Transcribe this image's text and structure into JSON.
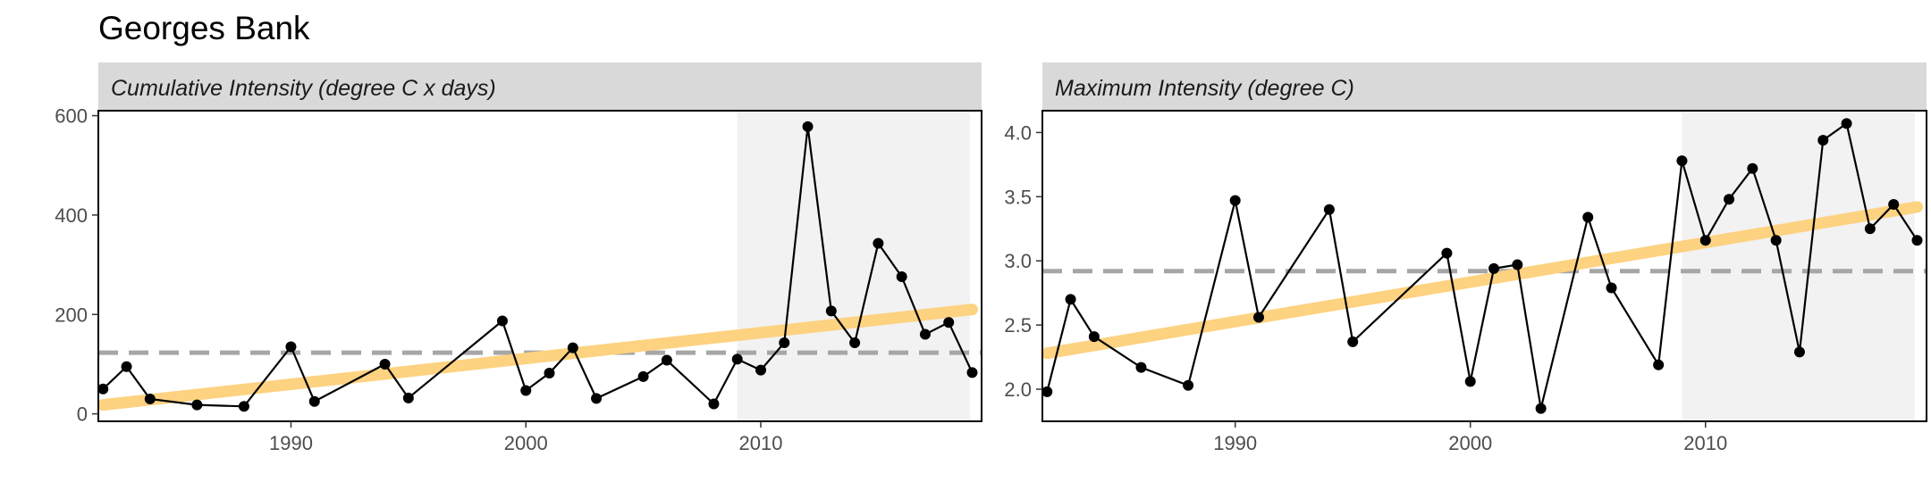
{
  "title": "Georges Bank",
  "chart_data": [
    {
      "type": "line",
      "panel_label": "Cumulative Intensity (degree C x days)",
      "xlim": [
        1981.8,
        2019.4
      ],
      "ylim": [
        -15,
        610
      ],
      "x_ticks": [
        1990,
        2000,
        2010
      ],
      "y_ticks": [
        0,
        200,
        400,
        600
      ],
      "shaded_region": [
        2009,
        2018.9
      ],
      "mean_line": 123,
      "trend": {
        "x": [
          1982,
          2019
        ],
        "y": [
          18,
          210
        ]
      },
      "colors": {
        "series": "#000000",
        "trend": "#fdd280",
        "mean": "#a6a6a6",
        "shade": "#f2f2f2"
      },
      "x": [
        1982,
        1983,
        1984,
        1986,
        1988,
        1990,
        1991,
        1994,
        1995,
        1999,
        2000,
        2001,
        2002,
        2003,
        2005,
        2006,
        2008,
        2009,
        2010,
        2011,
        2012,
        2013,
        2014,
        2015,
        2016,
        2017,
        2018,
        2019
      ],
      "y": [
        50,
        95,
        30,
        18,
        15,
        135,
        25,
        100,
        32,
        187,
        47,
        82,
        133,
        31,
        75,
        108,
        20,
        110,
        88,
        143,
        578,
        207,
        143,
        343,
        276,
        160,
        184,
        83
      ]
    },
    {
      "type": "line",
      "panel_label": "Maximum Intensity (degree C)",
      "xlim": [
        1981.8,
        2019.4
      ],
      "ylim": [
        1.75,
        4.17
      ],
      "x_ticks": [
        1990,
        2000,
        2010
      ],
      "y_ticks": [
        2.0,
        2.5,
        3.0,
        3.5,
        4.0
      ],
      "y_tick_labels": [
        "2.0",
        "2.5",
        "3.0",
        "3.5",
        "4.0"
      ],
      "shaded_region": [
        2009,
        2018.9
      ],
      "mean_line": 2.92,
      "trend": {
        "x": [
          1982,
          2019
        ],
        "y": [
          2.28,
          3.42
        ]
      },
      "colors": {
        "series": "#000000",
        "trend": "#fdd280",
        "mean": "#a6a6a6",
        "shade": "#f2f2f2"
      },
      "x": [
        1982,
        1983,
        1984,
        1986,
        1988,
        1990,
        1991,
        1994,
        1995,
        1999,
        2000,
        2001,
        2002,
        2003,
        2005,
        2006,
        2008,
        2009,
        2010,
        2011,
        2012,
        2013,
        2014,
        2015,
        2016,
        2017,
        2018,
        2019
      ],
      "y": [
        1.98,
        2.7,
        2.41,
        2.17,
        2.03,
        3.47,
        2.56,
        3.4,
        2.37,
        3.06,
        2.06,
        2.94,
        2.97,
        1.85,
        3.34,
        2.79,
        2.19,
        3.78,
        3.16,
        3.48,
        3.72,
        3.16,
        2.29,
        3.94,
        4.07,
        3.25,
        3.44,
        3.16
      ]
    }
  ]
}
